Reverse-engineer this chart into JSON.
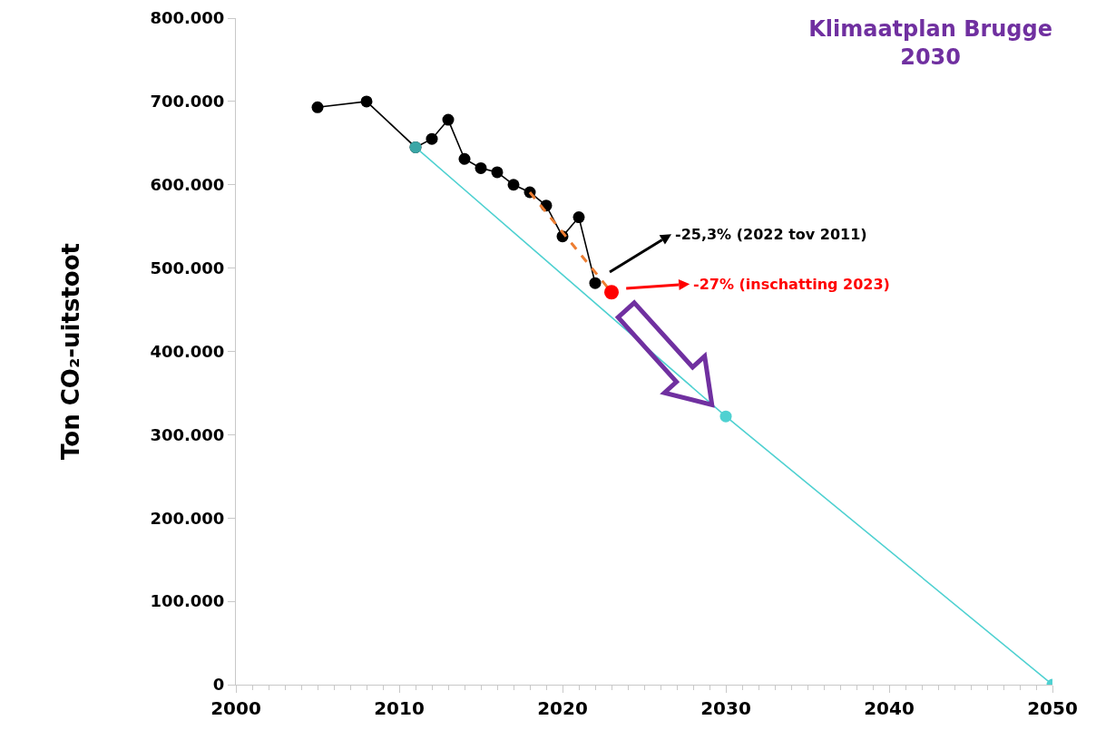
{
  "chart_data": {
    "type": "line",
    "title": "Klimaatplan Brugge 2030",
    "ylabel": "Ton CO₂-uitstoot",
    "xlim": [
      2000,
      2050
    ],
    "xticks": [
      2000,
      2010,
      2020,
      2030,
      2040,
      2050
    ],
    "ylim": [
      0,
      800000
    ],
    "yticks": [
      {
        "value": 0,
        "label": "0"
      },
      {
        "value": 100000,
        "label": "100.000"
      },
      {
        "value": 200000,
        "label": "200.000"
      },
      {
        "value": 300000,
        "label": "300.000"
      },
      {
        "value": 400000,
        "label": "400.000"
      },
      {
        "value": 500000,
        "label": "500.000"
      },
      {
        "value": 600000,
        "label": "600.000"
      },
      {
        "value": 700000,
        "label": "700.000"
      },
      {
        "value": 800000,
        "label": "800.000"
      }
    ],
    "grid": false,
    "series": [
      {
        "color": "#000000",
        "marker": "circle",
        "line_style": "solid",
        "x": [
          2005,
          2008,
          2011,
          2012,
          2013,
          2014,
          2015,
          2016,
          2017,
          2018,
          2019,
          2020,
          2021,
          2022
        ],
        "values": [
          693000,
          700000,
          645000,
          655000,
          678000,
          631000,
          620000,
          615000,
          600000,
          591000,
          575000,
          538000,
          561000,
          482000
        ]
      },
      {
        "color": "#ed7d31",
        "marker": "none",
        "line_style": "dashed",
        "x": [
          2018,
          2023
        ],
        "values": [
          591000,
          471000
        ]
      },
      {
        "color": "#4fd1d1",
        "colors": [
          "#3aa6a6",
          "#4fd1d1",
          "#4fd1d1"
        ],
        "marker": "circle",
        "line_style": "solid",
        "x": [
          2011,
          2030,
          2050
        ],
        "values": [
          645000,
          322000,
          0
        ]
      },
      {
        "type": "scatter",
        "color": "#ff0000",
        "marker": "circle",
        "x": [
          2023
        ],
        "values": [
          471000
        ]
      }
    ],
    "annotations": [
      "-25,3% (2022 tov 2011)",
      "-27% (inschatting 2023)"
    ]
  }
}
